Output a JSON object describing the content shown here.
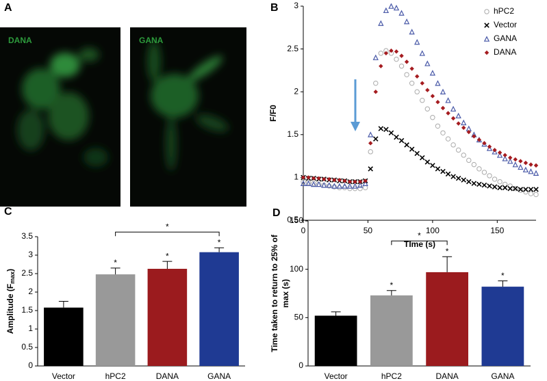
{
  "panel_a": {
    "letter": "A",
    "images": [
      {
        "label": "DANA"
      },
      {
        "label": "GANA"
      }
    ]
  },
  "chart_data": [
    {
      "type": "scatter",
      "letter": "B",
      "x_label": "TIme (s)",
      "y_label": "F/F0",
      "x": [
        0,
        4,
        8,
        12,
        16,
        20,
        24,
        28,
        32,
        36,
        40,
        44,
        48,
        52,
        56,
        60,
        64,
        68,
        72,
        76,
        80,
        84,
        88,
        92,
        96,
        100,
        104,
        108,
        112,
        116,
        120,
        124,
        128,
        132,
        136,
        140,
        144,
        148,
        152,
        156,
        160,
        164,
        168,
        172,
        176,
        180
      ],
      "series": [
        {
          "name": "hPC2",
          "color": "#aaaaaa",
          "marker": "circle",
          "values": [
            0.95,
            0.94,
            0.93,
            0.92,
            0.91,
            0.9,
            0.89,
            0.88,
            0.88,
            0.87,
            0.87,
            0.87,
            0.88,
            1.3,
            2.1,
            2.45,
            2.48,
            2.45,
            2.38,
            2.3,
            2.2,
            2.1,
            2.0,
            1.9,
            1.8,
            1.7,
            1.6,
            1.52,
            1.45,
            1.38,
            1.32,
            1.26,
            1.2,
            1.15,
            1.1,
            1.06,
            1.02,
            0.98,
            0.95,
            0.92,
            0.9,
            0.87,
            0.85,
            0.83,
            0.81,
            0.8
          ]
        },
        {
          "name": "Vector",
          "color": "#000000",
          "marker": "x",
          "values": [
            1.0,
            0.99,
            0.99,
            0.98,
            0.98,
            0.97,
            0.97,
            0.96,
            0.96,
            0.95,
            0.95,
            0.95,
            0.96,
            1.1,
            1.45,
            1.57,
            1.56,
            1.52,
            1.47,
            1.43,
            1.38,
            1.33,
            1.28,
            1.23,
            1.18,
            1.14,
            1.1,
            1.07,
            1.04,
            1.01,
            0.99,
            0.97,
            0.95,
            0.93,
            0.92,
            0.91,
            0.9,
            0.89,
            0.88,
            0.88,
            0.87,
            0.87,
            0.86,
            0.86,
            0.86,
            0.86
          ]
        },
        {
          "name": "GANA",
          "color": "#4a5aa8",
          "marker": "triangle",
          "values": [
            0.93,
            0.93,
            0.92,
            0.92,
            0.91,
            0.91,
            0.9,
            0.9,
            0.9,
            0.9,
            0.9,
            0.91,
            0.93,
            1.5,
            2.4,
            2.8,
            2.95,
            3.0,
            2.98,
            2.92,
            2.82,
            2.7,
            2.58,
            2.45,
            2.33,
            2.22,
            2.1,
            2.0,
            1.9,
            1.8,
            1.72,
            1.64,
            1.57,
            1.5,
            1.44,
            1.39,
            1.34,
            1.3,
            1.26,
            1.22,
            1.19,
            1.15,
            1.12,
            1.09,
            1.07,
            1.05
          ]
        },
        {
          "name": "DANA",
          "color": "#a51c20",
          "marker": "diamond",
          "values": [
            1.0,
            1.0,
            0.99,
            0.99,
            0.98,
            0.98,
            0.97,
            0.97,
            0.96,
            0.95,
            0.95,
            0.95,
            0.96,
            1.4,
            2.0,
            2.3,
            2.45,
            2.48,
            2.47,
            2.42,
            2.35,
            2.27,
            2.18,
            2.1,
            2.02,
            1.95,
            1.88,
            1.81,
            1.75,
            1.69,
            1.63,
            1.58,
            1.53,
            1.48,
            1.44,
            1.4,
            1.36,
            1.32,
            1.29,
            1.26,
            1.23,
            1.21,
            1.19,
            1.17,
            1.15,
            1.14
          ]
        }
      ],
      "xlim": [
        0,
        180
      ],
      "xticks": [
        0,
        50,
        100,
        150
      ],
      "ylim": [
        0.5,
        3
      ],
      "yticks": [
        0.5,
        1,
        1.5,
        2,
        2.5,
        3
      ],
      "legend": "upper right"
    },
    {
      "type": "bar",
      "letter": "C",
      "y_label": [
        "Amplitude (F",
        "max",
        ")"
      ],
      "categories": [
        "Vector",
        "hPC2",
        "DANA",
        "GANA"
      ],
      "values": [
        1.58,
        2.48,
        2.63,
        3.08
      ],
      "errors": [
        0.17,
        0.17,
        0.2,
        0.12
      ],
      "colors": [
        "#000000",
        "#999999",
        "#9b1b1e",
        "#1f3a93"
      ],
      "significance": [
        null,
        "*",
        "*",
        "*"
      ],
      "bracket": {
        "from": "hPC2",
        "to": "GANA",
        "label": "*"
      },
      "ylim": [
        0,
        3.5
      ],
      "yticks": [
        0,
        0.5,
        1,
        1.5,
        2,
        2.5,
        3,
        3.5
      ]
    },
    {
      "type": "bar",
      "letter": "D",
      "y_label": [
        "Time taken to return to 25% of",
        "max (s)"
      ],
      "categories": [
        "Vector",
        "hPC2",
        "DANA",
        "GANA"
      ],
      "values": [
        52,
        73,
        97,
        82
      ],
      "errors": [
        4,
        5,
        16,
        6
      ],
      "colors": [
        "#000000",
        "#999999",
        "#9b1b1e",
        "#1f3a93"
      ],
      "significance": [
        null,
        "*",
        "*",
        "*"
      ],
      "bracket": {
        "from": "hPC2",
        "to": "DANA",
        "label": "*"
      },
      "ylim": [
        0,
        150
      ],
      "yticks": [
        0,
        50,
        100,
        150
      ]
    }
  ]
}
